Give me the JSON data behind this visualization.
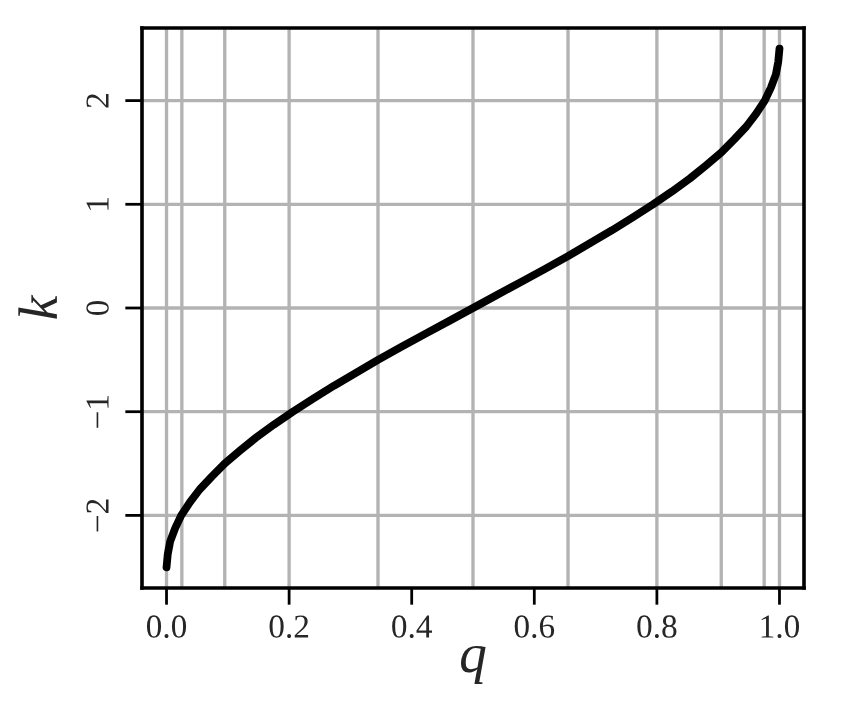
{
  "chart_data": {
    "type": "line",
    "xlabel": "q",
    "ylabel": "k",
    "x": [
      0.0,
      0.002,
      0.006,
      0.014,
      0.024,
      0.038,
      0.054,
      0.074,
      0.095,
      0.12,
      0.146,
      0.175,
      0.206,
      0.239,
      0.273,
      0.309,
      0.345,
      0.383,
      0.422,
      0.461,
      0.5,
      0.539,
      0.578,
      0.617,
      0.655,
      0.691,
      0.727,
      0.761,
      0.794,
      0.825,
      0.854,
      0.88,
      0.905,
      0.926,
      0.946,
      0.962,
      0.976,
      0.986,
      0.994,
      0.998,
      1.0
    ],
    "series": [
      {
        "color": "#000000",
        "values": [
          -2.5,
          -2.375,
          -2.25,
          -2.125,
          -2.0,
          -1.875,
          -1.75,
          -1.625,
          -1.5,
          -1.375,
          -1.25,
          -1.125,
          -1.0,
          -0.875,
          -0.75,
          -0.625,
          -0.5,
          -0.375,
          -0.25,
          -0.125,
          0.0,
          0.125,
          0.25,
          0.375,
          0.5,
          0.625,
          0.75,
          0.875,
          1.0,
          1.125,
          1.25,
          1.375,
          1.5,
          1.625,
          1.75,
          1.875,
          2.0,
          2.125,
          2.25,
          2.375,
          2.5
        ]
      }
    ],
    "xlim": [
      -0.04,
      1.04
    ],
    "ylim": [
      -2.7,
      2.7
    ],
    "xticks": [
      {
        "value": 0,
        "label": "0.0"
      },
      {
        "value": 0.2,
        "label": "0.2"
      },
      {
        "value": 0.4,
        "label": "0.4"
      },
      {
        "value": 0.6,
        "label": "0.6"
      },
      {
        "value": 0.8,
        "label": "0.8"
      },
      {
        "value": 1,
        "label": "1.0"
      }
    ],
    "yticks": [
      {
        "value": -2,
        "label": "−2"
      },
      {
        "value": -1,
        "label": "−1"
      },
      0,
      1,
      2
    ],
    "grid": "y",
    "legend": false,
    "marker": "none",
    "line_style": "solid",
    "ref_lines": [
      {
        "axis": "x",
        "value": 0.0,
        "color": "#b3b3b3"
      },
      {
        "axis": "x",
        "value": 0.025,
        "color": "#b3b3b3"
      },
      {
        "axis": "x",
        "value": 0.095,
        "color": "#b3b3b3"
      },
      {
        "axis": "x",
        "value": 0.2,
        "color": "#b3b3b3"
      },
      {
        "axis": "x",
        "value": 0.345,
        "color": "#b3b3b3"
      },
      {
        "axis": "x",
        "value": 0.5,
        "color": "#b3b3b3"
      },
      {
        "axis": "x",
        "value": 0.655,
        "color": "#b3b3b3"
      },
      {
        "axis": "x",
        "value": 0.8,
        "color": "#b3b3b3"
      },
      {
        "axis": "x",
        "value": 0.905,
        "color": "#b3b3b3"
      },
      {
        "axis": "x",
        "value": 0.975,
        "color": "#b3b3b3"
      },
      {
        "axis": "x",
        "value": 1.0,
        "color": "#b3b3b3"
      }
    ]
  }
}
